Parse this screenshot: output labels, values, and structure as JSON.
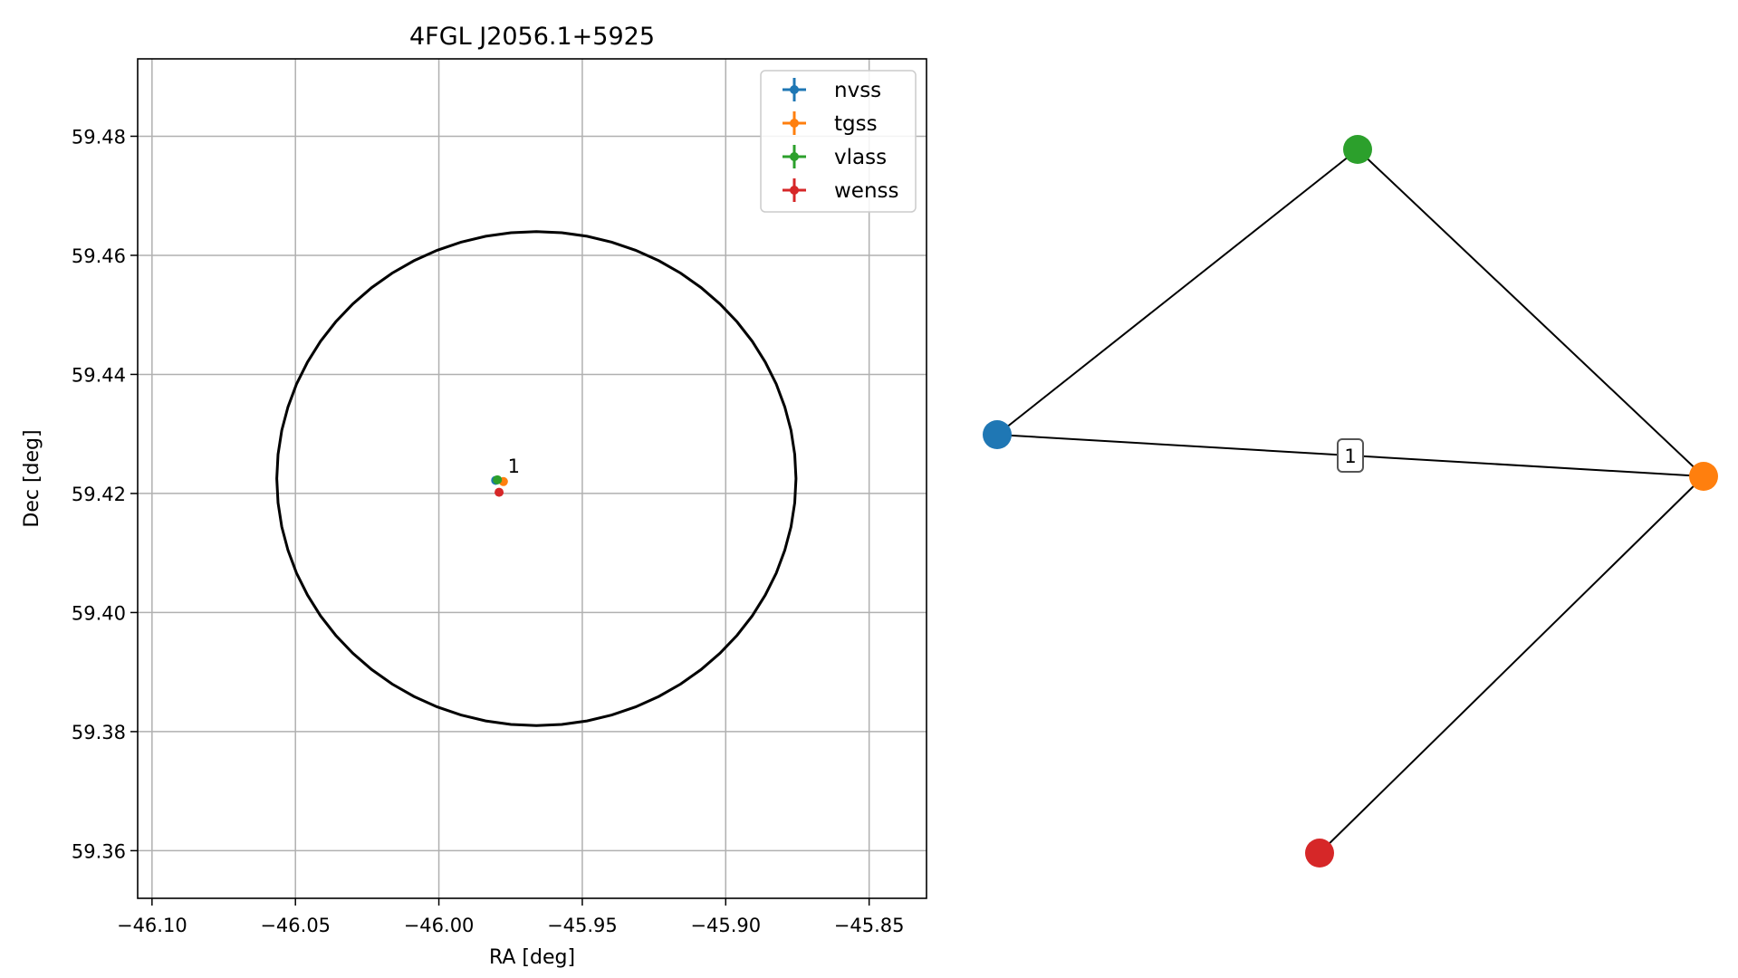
{
  "chart_data": [
    {
      "type": "scatter",
      "title": "4FGL J2056.1+5925",
      "xlabel": "RA [deg]",
      "ylabel": "Dec [deg]",
      "xlim": [
        -46.105,
        -45.83
      ],
      "ylim": [
        59.352,
        59.493
      ],
      "xticks": [
        -46.1,
        -46.05,
        -46.0,
        -45.95,
        -45.9,
        -45.85
      ],
      "xtick_labels": [
        "−46.10",
        "−46.05",
        "−46.00",
        "−45.95",
        "−45.90",
        "−45.85"
      ],
      "yticks": [
        59.36,
        59.38,
        59.4,
        59.42,
        59.44,
        59.46,
        59.48
      ],
      "ytick_labels": [
        "59.36",
        "59.38",
        "59.40",
        "59.42",
        "59.44",
        "59.46",
        "59.48"
      ],
      "grid": true,
      "legend_position": "top-right",
      "ellipse": {
        "center_ra": -45.966,
        "center_dec": 59.4225,
        "radius_ra": 0.0905,
        "radius_dec": 0.0415,
        "color": "#000000"
      },
      "series": [
        {
          "name": "nvss",
          "color": "#1f77b4",
          "points": [
            {
              "ra": -45.9802,
              "dec": 59.4222
            }
          ]
        },
        {
          "name": "tgss",
          "color": "#ff7f0e",
          "points": [
            {
              "ra": -45.9775,
              "dec": 59.422
            }
          ]
        },
        {
          "name": "vlass",
          "color": "#2ca02c",
          "points": [
            {
              "ra": -45.9796,
              "dec": 59.4223
            }
          ]
        },
        {
          "name": "wenss",
          "color": "#d62728",
          "points": [
            {
              "ra": -45.979,
              "dec": 59.4202
            }
          ]
        }
      ],
      "annotations": [
        {
          "text": "1",
          "ra": -45.976,
          "dec": 59.4235
        }
      ]
    },
    {
      "type": "network",
      "nodes": [
        {
          "id": "nvss",
          "color": "#1f77b4"
        },
        {
          "id": "tgss",
          "color": "#ff7f0e"
        },
        {
          "id": "vlass",
          "color": "#2ca02c"
        },
        {
          "id": "wenss",
          "color": "#d62728"
        }
      ],
      "edges": [
        {
          "source": "nvss",
          "target": "vlass",
          "label": ""
        },
        {
          "source": "vlass",
          "target": "tgss",
          "label": ""
        },
        {
          "source": "nvss",
          "target": "tgss",
          "label": "1"
        },
        {
          "source": "tgss",
          "target": "wenss",
          "label": ""
        }
      ]
    }
  ]
}
